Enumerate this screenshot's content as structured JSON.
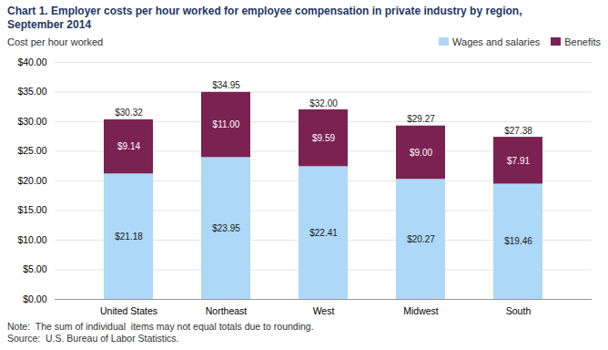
{
  "chart_data": {
    "type": "bar",
    "title": "Chart 1. Employer  costs per hour worked for employee compensation in private industry by region,\nSeptember 2014",
    "ylabel": "Cost per hour worked",
    "annotations": [
      "Note:  The sum of individual  items may not equal totals due to rounding.",
      "Source:  U.S. Bureau of Labor Statistics."
    ],
    "categories": [
      "United States",
      "Northeast",
      "West",
      "Midwest",
      "South"
    ],
    "series": [
      {
        "name": "Wages and salaries",
        "color": "#add8f7",
        "values": [
          21.18,
          23.95,
          22.41,
          20.27,
          19.46
        ],
        "value_labels": [
          "$21.18",
          "$23.95",
          "$22.41",
          "$20.27",
          "$19.46"
        ]
      },
      {
        "name": "Benefits",
        "color": "#7b2252",
        "values": [
          9.14,
          11.0,
          9.59,
          9.0,
          7.91
        ],
        "value_labels": [
          "$9.14",
          "$11.00",
          "$9.59",
          "$9.00",
          "$7.91"
        ]
      }
    ],
    "totals": [
      30.32,
      34.95,
      32.0,
      29.27,
      27.38
    ],
    "total_labels": [
      "$30.32",
      "$34.95",
      "$32.00",
      "$29.27",
      "$27.38"
    ],
    "stacked": true,
    "data_labels": true,
    "legend": "upper right",
    "grid": true,
    "ylim": [
      0,
      40
    ],
    "yticks": [
      {
        "value": 0,
        "label": "$0.00"
      },
      {
        "value": 5,
        "label": "$5.00"
      },
      {
        "value": 10,
        "label": "$10.00"
      },
      {
        "value": 15,
        "label": "$15.00"
      },
      {
        "value": 20,
        "label": "$20.00"
      },
      {
        "value": 25,
        "label": "$25.00"
      },
      {
        "value": 30,
        "label": "$30.00"
      },
      {
        "value": 35,
        "label": "$35.00"
      },
      {
        "value": 40,
        "label": "$40.00"
      }
    ]
  }
}
